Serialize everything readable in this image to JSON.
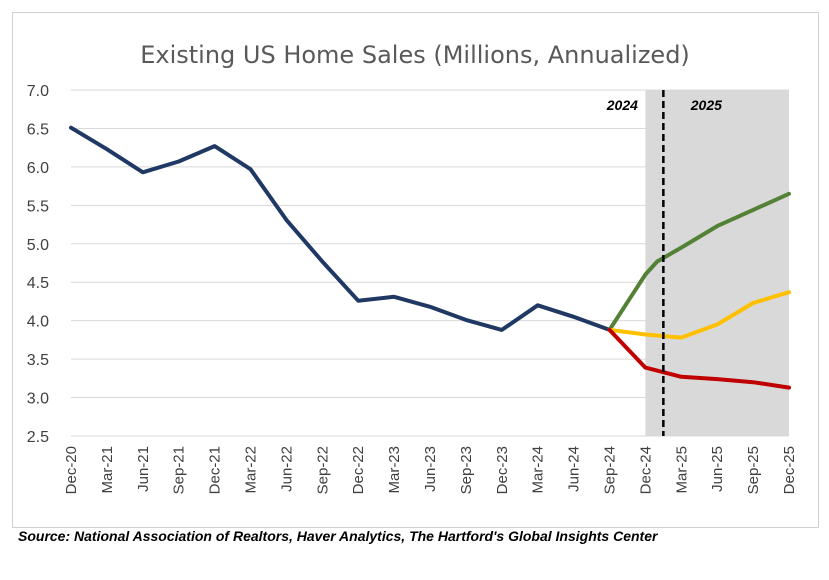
{
  "chart_data": {
    "type": "line",
    "title": "Existing US Home Sales (Millions, Annualized)",
    "source": "Source: National Association of Realtors, Haver Analytics, The Hartford's Global Insights Center",
    "ylim": [
      2.5,
      7.0
    ],
    "yticks": [
      "2.5",
      "3.0",
      "3.5",
      "4.0",
      "4.5",
      "5.0",
      "5.5",
      "6.0",
      "6.5",
      "7.0"
    ],
    "categories": [
      "Dec-20",
      "Mar-21",
      "Jun-21",
      "Sep-21",
      "Dec-21",
      "Mar-22",
      "Jun-22",
      "Sep-22",
      "Dec-22",
      "Mar-23",
      "Jun-23",
      "Sep-23",
      "Dec-23",
      "Mar-24",
      "Jun-24",
      "Sep-24",
      "Dec-24",
      "Mar-25",
      "Jun-25",
      "Sep-25",
      "Dec-25"
    ],
    "grid": true,
    "forecast_region": {
      "start": "Dec-24",
      "end": "Dec-25",
      "color": "#d9d9d9"
    },
    "divider": {
      "at": "Jan-25",
      "style": "dashed"
    },
    "period_labels": [
      "2024",
      "2025"
    ],
    "series": [
      {
        "color": "#203864",
        "points": [
          [
            0,
            6.51
          ],
          [
            1,
            6.23
          ],
          [
            2,
            5.93
          ],
          [
            3,
            6.07
          ],
          [
            4,
            6.27
          ],
          [
            5,
            5.97
          ],
          [
            6,
            5.31
          ],
          [
            7,
            4.77
          ],
          [
            8,
            4.26
          ],
          [
            9,
            4.31
          ],
          [
            10,
            4.18
          ],
          [
            11,
            4.01
          ],
          [
            12,
            3.88
          ],
          [
            13,
            4.2
          ],
          [
            14,
            4.05
          ],
          [
            15,
            3.88
          ]
        ]
      },
      {
        "color": "#538135",
        "points": [
          [
            15,
            3.88
          ],
          [
            16,
            4.6
          ],
          [
            16.33,
            4.77
          ],
          [
            17,
            4.95
          ],
          [
            18,
            5.23
          ],
          [
            19,
            5.44
          ],
          [
            20,
            5.65
          ]
        ]
      },
      {
        "color": "#ffc000",
        "points": [
          [
            15,
            3.88
          ],
          [
            16,
            3.82
          ],
          [
            17,
            3.78
          ],
          [
            18,
            3.95
          ],
          [
            19,
            4.23
          ],
          [
            20,
            4.37
          ]
        ]
      },
      {
        "color": "#c00000",
        "points": [
          [
            15,
            3.88
          ],
          [
            16,
            3.39
          ],
          [
            17,
            3.27
          ],
          [
            18,
            3.24
          ],
          [
            19,
            3.2
          ],
          [
            20,
            3.13
          ]
        ]
      }
    ]
  }
}
